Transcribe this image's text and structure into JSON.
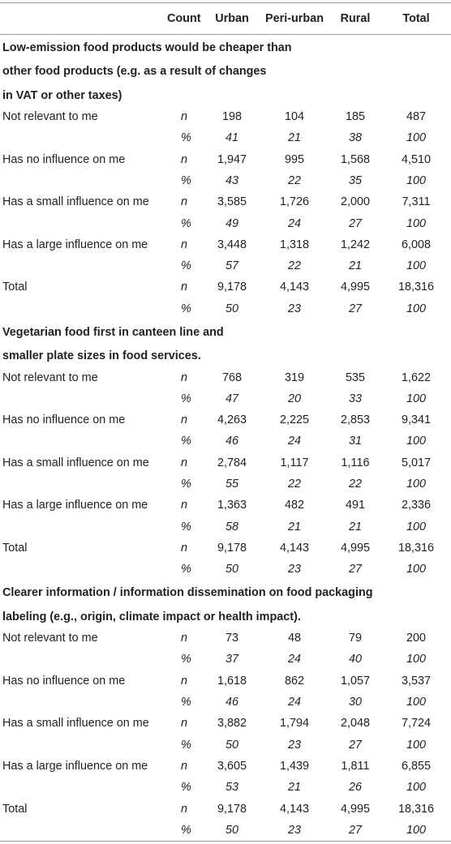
{
  "header": {
    "label": "",
    "count": "Count",
    "urban": "Urban",
    "peri_urban": "Peri-urban",
    "rural": "Rural",
    "total": "Total"
  },
  "sections": [
    {
      "title_lines": [
        "Low-emission food products would be cheaper than",
        "other food products (e.g. as a result of changes",
        "in VAT or other taxes)"
      ],
      "rows": [
        {
          "label": "Not relevant to me",
          "n": [
            "198",
            "104",
            "185",
            "487"
          ],
          "pct": [
            "41",
            "21",
            "38",
            "100"
          ]
        },
        {
          "label": "Has no influence on me",
          "n": [
            "1,947",
            "995",
            "1,568",
            "4,510"
          ],
          "pct": [
            "43",
            "22",
            "35",
            "100"
          ]
        },
        {
          "label": "Has a small influence on me",
          "n": [
            "3,585",
            "1,726",
            "2,000",
            "7,311"
          ],
          "pct": [
            "49",
            "24",
            "27",
            "100"
          ]
        },
        {
          "label": "Has a large influence on me",
          "n": [
            "3,448",
            "1,318",
            "1,242",
            "6,008"
          ],
          "pct": [
            "57",
            "22",
            "21",
            "100"
          ]
        },
        {
          "label": "Total",
          "n": [
            "9,178",
            "4,143",
            "4,995",
            "18,316"
          ],
          "pct": [
            "50",
            "23",
            "27",
            "100"
          ]
        }
      ]
    },
    {
      "title_lines": [
        "Vegetarian food first in canteen line and",
        "smaller plate sizes in food services."
      ],
      "rows": [
        {
          "label": "Not relevant to me",
          "n": [
            "768",
            "319",
            "535",
            "1,622"
          ],
          "pct": [
            "47",
            "20",
            "33",
            "100"
          ]
        },
        {
          "label": "Has no influence on me",
          "n": [
            "4,263",
            "2,225",
            "2,853",
            "9,341"
          ],
          "pct": [
            "46",
            "24",
            "31",
            "100"
          ]
        },
        {
          "label": "Has a small influence on me",
          "n": [
            "2,784",
            "1,117",
            "1,116",
            "5,017"
          ],
          "pct": [
            "55",
            "22",
            "22",
            "100"
          ]
        },
        {
          "label": "Has a large influence on me",
          "n": [
            "1,363",
            "482",
            "491",
            "2,336"
          ],
          "pct": [
            "58",
            "21",
            "21",
            "100"
          ]
        },
        {
          "label": "Total",
          "n": [
            "9,178",
            "4,143",
            "4,995",
            "18,316"
          ],
          "pct": [
            "50",
            "23",
            "27",
            "100"
          ]
        }
      ]
    },
    {
      "title_lines": [
        "Clearer information / information dissemination on food packaging",
        "labeling (e.g., origin, climate impact or health impact)."
      ],
      "rows": [
        {
          "label": "Not relevant to me",
          "n": [
            "73",
            "48",
            "79",
            "200"
          ],
          "pct": [
            "37",
            "24",
            "40",
            "100"
          ]
        },
        {
          "label": "Has no influence on me",
          "n": [
            "1,618",
            "862",
            "1,057",
            "3,537"
          ],
          "pct": [
            "46",
            "24",
            "30",
            "100"
          ]
        },
        {
          "label": "Has a small influence on me",
          "n": [
            "3,882",
            "1,794",
            "2,048",
            "7,724"
          ],
          "pct": [
            "50",
            "23",
            "27",
            "100"
          ]
        },
        {
          "label": "Has a large influence on me",
          "n": [
            "3,605",
            "1,439",
            "1,811",
            "6,855"
          ],
          "pct": [
            "53",
            "21",
            "26",
            "100"
          ]
        },
        {
          "label": "Total",
          "n": [
            "9,178",
            "4,143",
            "4,995",
            "18,316"
          ],
          "pct": [
            "50",
            "23",
            "27",
            "100"
          ]
        }
      ]
    }
  ],
  "symbols": {
    "n": "n",
    "pct": "%"
  }
}
